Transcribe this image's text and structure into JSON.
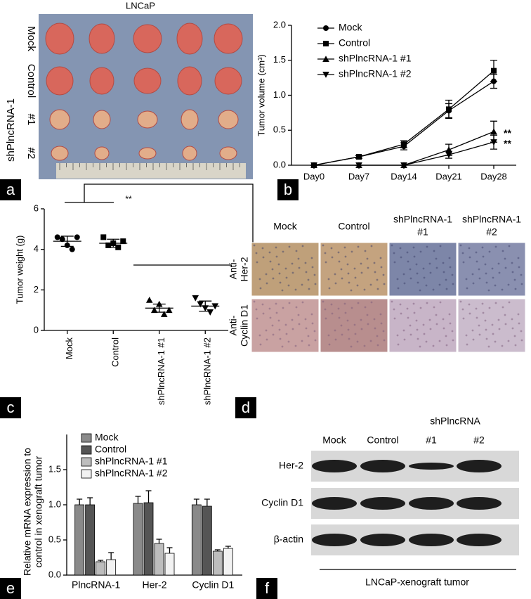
{
  "panel_labels": [
    "a",
    "b",
    "c",
    "d",
    "e",
    "f"
  ],
  "photo_a": {
    "title": "LNCaP",
    "rows": [
      "Mock",
      "Control",
      "#1",
      "#2"
    ],
    "group": "shPlncRNA-1"
  },
  "chart_data": [
    {
      "type": "line",
      "ylabel": "Tumor volume (cm³)",
      "categories": [
        "Day0",
        "Day7",
        "Day14",
        "Day21",
        "Day28"
      ],
      "ylim": [
        0,
        2.0
      ],
      "yticks": [
        {
          "value": 0,
          "label": "0.0"
        },
        {
          "value": 0.5,
          "label": "0.5"
        },
        {
          "value": 1,
          "label": "1.0"
        },
        {
          "value": 1.5,
          "label": "1.5"
        },
        {
          "value": 2,
          "label": "2.0"
        }
      ],
      "series": [
        {
          "name": "Mock",
          "color": "#000000",
          "marker": "circle",
          "values": [
            0,
            0.12,
            0.27,
            0.78,
            1.2
          ],
          "errors": [
            0,
            0.02,
            0.05,
            0.1,
            0.1
          ]
        },
        {
          "name": "Control",
          "color": "#000000",
          "marker": "square",
          "values": [
            0,
            0.12,
            0.3,
            0.8,
            1.35
          ],
          "errors": [
            0,
            0.02,
            0.05,
            0.13,
            0.15
          ]
        },
        {
          "name": "shPlncRNA-1 #1",
          "color": "#000000",
          "marker": "triangle-up",
          "values": [
            0,
            0,
            0,
            0.22,
            0.48
          ],
          "errors": [
            0,
            0,
            0,
            0.08,
            0.15
          ]
        },
        {
          "name": "shPlncRNA-1 #2",
          "color": "#000000",
          "marker": "triangle-down",
          "values": [
            0,
            0,
            0,
            0.15,
            0.33
          ],
          "errors": [
            0,
            0,
            0,
            0.05,
            0.1
          ]
        }
      ],
      "annotations": [
        "**",
        "**"
      ]
    },
    {
      "type": "dot",
      "ylabel": "Tumor weight (g)",
      "categories": [
        "Mock",
        "Control",
        "shPlncRNA-1 #1",
        "shPlncRNA-1 #2"
      ],
      "ylim": [
        0,
        6
      ],
      "yticks": [
        0,
        2,
        4,
        6
      ],
      "markers": [
        "circle",
        "square",
        "triangle-up",
        "triangle-down"
      ],
      "points": [
        [
          4.6,
          4.5,
          4.2,
          4.0,
          4.6
        ],
        [
          4.6,
          4.2,
          4.3,
          4.1,
          4.4
        ],
        [
          1.5,
          1.0,
          1.3,
          0.8,
          1.0
        ],
        [
          1.6,
          1.3,
          1.1,
          0.9,
          1.2
        ]
      ],
      "means": [
        4.4,
        4.3,
        1.1,
        1.2
      ],
      "errors": [
        0.25,
        0.2,
        0.2,
        0.25
      ],
      "annotation": "**"
    },
    {
      "type": "bar",
      "ylabel": [
        "Relative mRNA expression to",
        "control in xenograft tumor"
      ],
      "categories": [
        "PlncRNA-1",
        "Her-2",
        "Cyclin D1"
      ],
      "ylim": [
        0,
        2.0
      ],
      "yticks": [
        {
          "value": 0,
          "label": "0.0"
        },
        {
          "value": 0.5,
          "label": "0.5"
        },
        {
          "value": 1,
          "label": "1.0"
        },
        {
          "value": 1.5,
          "label": "1.5"
        }
      ],
      "series": [
        {
          "name": "Mock",
          "color": "#8a8a8a",
          "values": [
            1.0,
            1.02,
            1.0
          ],
          "errors": [
            0.08,
            0.1,
            0.08
          ]
        },
        {
          "name": "Control",
          "color": "#555555",
          "values": [
            1.0,
            1.03,
            0.98
          ],
          "errors": [
            0.1,
            0.17,
            0.1
          ]
        },
        {
          "name": "shPlncRNA-1 #1",
          "color": "#bdbdbd",
          "values": [
            0.19,
            0.45,
            0.34
          ],
          "errors": [
            0.02,
            0.06,
            0.02
          ]
        },
        {
          "name": "shPlncRNA-1 #2",
          "color": "#f2f2f2",
          "values": [
            0.22,
            0.31,
            0.38
          ],
          "errors": [
            0.1,
            0.08,
            0.03
          ]
        }
      ]
    }
  ],
  "ihc_d": {
    "columns": [
      [
        "Mock"
      ],
      [
        "Control"
      ],
      [
        "shPlncRNA-1",
        "#1"
      ],
      [
        "shPlncRNA-1",
        "#2"
      ]
    ],
    "rows": [
      [
        "Anti-",
        "Her-2"
      ],
      [
        "Anti-",
        "Cyclin D1"
      ]
    ]
  },
  "blot_f": {
    "group": "shPlncRNA",
    "lanes": [
      "Mock",
      "Control",
      "#1",
      "#2"
    ],
    "rows": [
      "Her-2",
      "Cyclin D1",
      "β-actin"
    ],
    "footer": "LNCaP-xenograft tumor"
  }
}
